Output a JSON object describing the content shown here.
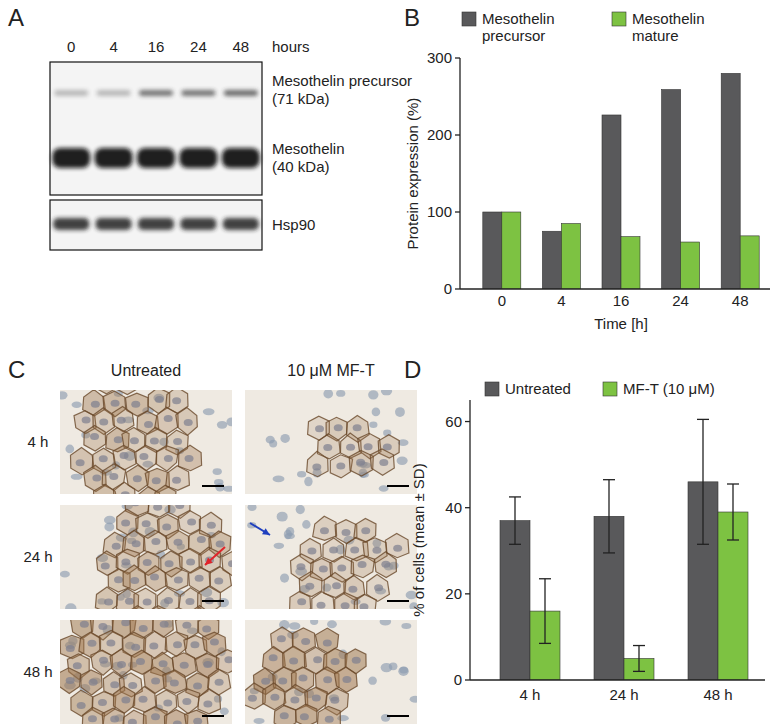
{
  "panel_labels": [
    "A",
    "B",
    "C",
    "D"
  ],
  "blot": {
    "lanes": [
      "0",
      "4",
      "16",
      "24",
      "48"
    ],
    "lane_unit": "hours",
    "bands": [
      {
        "label": "Mesothelin precursor",
        "detail": "(71 kDa)"
      },
      {
        "label": "Mesothelin",
        "detail": "(40 kDa)"
      },
      {
        "label": "Hsp90"
      }
    ]
  },
  "micrographs": {
    "columns": [
      "Untreated",
      "10 μM  MF-T"
    ],
    "rows": [
      "4 h",
      "24 h",
      "48 h"
    ]
  },
  "chart_data": [
    {
      "type": "bar",
      "categories": [
        "0",
        "4",
        "16",
        "24",
        "48"
      ],
      "x_label": "Time [h]",
      "y_label": "Protein expression (%)",
      "ylim": [
        0,
        300
      ],
      "yticks": [
        0,
        100,
        200,
        300
      ],
      "legend": "top",
      "series": [
        {
          "name": "Mesothelin precursor",
          "color": "#59595b",
          "values": [
            100,
            75,
            226,
            259,
            280
          ]
        },
        {
          "name": "Mesothelin mature",
          "color": "#7dc242",
          "values": [
            100,
            85,
            68,
            61,
            69
          ]
        }
      ]
    },
    {
      "type": "bar",
      "categories": [
        "4 h",
        "24 h",
        "48 h"
      ],
      "y_label": "% of cells (mean ± SD)",
      "ylim": [
        0,
        65
      ],
      "yticks": [
        0,
        20,
        40,
        60
      ],
      "legend": "top",
      "series": [
        {
          "name": "Untreated",
          "color": "#59595b",
          "values": [
            37,
            38,
            46
          ],
          "errors": [
            5.5,
            8.5,
            14.5
          ]
        },
        {
          "name": "MF-T (10 μM)",
          "color": "#7dc242",
          "values": [
            16,
            5,
            39
          ],
          "errors": [
            7.5,
            3,
            6.5
          ]
        }
      ]
    }
  ]
}
